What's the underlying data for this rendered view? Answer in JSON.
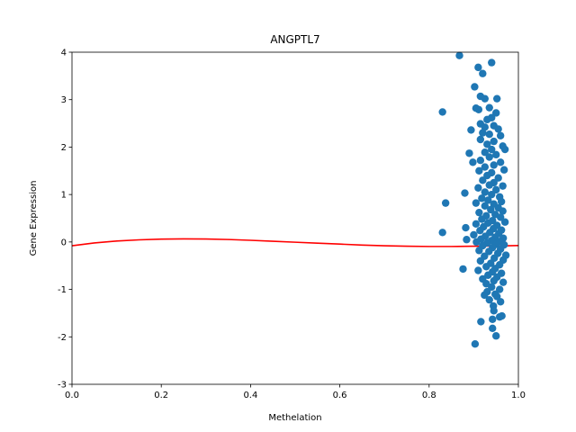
{
  "chart_data": {
    "type": "scatter",
    "title": "ANGPTL7",
    "xlabel": "Methelation",
    "ylabel": "Gene Expression",
    "xlim": [
      0.0,
      1.0
    ],
    "ylim": [
      -3,
      4
    ],
    "x_ticks": [
      "0.0",
      "0.2",
      "0.4",
      "0.6",
      "0.8",
      "1.0"
    ],
    "y_ticks": [
      "-3",
      "-2",
      "-1",
      "0",
      "1",
      "2",
      "3",
      "4"
    ],
    "grid": false,
    "colors": {
      "points": "#1f77b4",
      "fit_line": "#ff0000"
    },
    "series": [
      {
        "kind": "scatter",
        "points": [
          [
            0.868,
            3.93
          ],
          [
            0.94,
            3.78
          ],
          [
            0.91,
            3.68
          ],
          [
            0.92,
            3.55
          ],
          [
            0.902,
            3.27
          ],
          [
            0.915,
            3.07
          ],
          [
            0.925,
            3.02
          ],
          [
            0.952,
            3.02
          ],
          [
            0.905,
            2.82
          ],
          [
            0.911,
            2.79
          ],
          [
            0.935,
            2.83
          ],
          [
            0.95,
            2.72
          ],
          [
            0.83,
            2.74
          ],
          [
            0.94,
            2.62
          ],
          [
            0.93,
            2.58
          ],
          [
            0.915,
            2.49
          ],
          [
            0.945,
            2.45
          ],
          [
            0.925,
            2.42
          ],
          [
            0.894,
            2.36
          ],
          [
            0.955,
            2.38
          ],
          [
            0.92,
            2.3
          ],
          [
            0.935,
            2.27
          ],
          [
            0.96,
            2.24
          ],
          [
            0.915,
            2.16
          ],
          [
            0.945,
            2.12
          ],
          [
            0.93,
            2.06
          ],
          [
            0.965,
            2.02
          ],
          [
            0.97,
            1.95
          ],
          [
            0.94,
            1.95
          ],
          [
            0.925,
            1.89
          ],
          [
            0.89,
            1.87
          ],
          [
            0.95,
            1.84
          ],
          [
            0.935,
            1.79
          ],
          [
            0.915,
            1.72
          ],
          [
            0.96,
            1.68
          ],
          [
            0.898,
            1.68
          ],
          [
            0.945,
            1.62
          ],
          [
            0.925,
            1.58
          ],
          [
            0.968,
            1.52
          ],
          [
            0.912,
            1.5
          ],
          [
            0.94,
            1.46
          ],
          [
            0.93,
            1.4
          ],
          [
            0.955,
            1.35
          ],
          [
            0.92,
            1.3
          ],
          [
            0.945,
            1.25
          ],
          [
            0.935,
            1.2
          ],
          [
            0.965,
            1.18
          ],
          [
            0.91,
            1.14
          ],
          [
            0.95,
            1.1
          ],
          [
            0.925,
            1.05
          ],
          [
            0.88,
            1.03
          ],
          [
            0.94,
            1.0
          ],
          [
            0.958,
            0.95
          ],
          [
            0.918,
            0.92
          ],
          [
            0.932,
            0.88
          ],
          [
            0.962,
            0.85
          ],
          [
            0.945,
            0.8
          ],
          [
            0.905,
            0.82
          ],
          [
            0.837,
            0.82
          ],
          [
            0.925,
            0.76
          ],
          [
            0.955,
            0.72
          ],
          [
            0.938,
            0.68
          ],
          [
            0.965,
            0.65
          ],
          [
            0.912,
            0.62
          ],
          [
            0.948,
            0.58
          ],
          [
            0.928,
            0.55
          ],
          [
            0.96,
            0.52
          ],
          [
            0.918,
            0.48
          ],
          [
            0.942,
            0.45
          ],
          [
            0.97,
            0.42
          ],
          [
            0.932,
            0.4
          ],
          [
            0.905,
            0.38
          ],
          [
            0.952,
            0.35
          ],
          [
            0.922,
            0.32
          ],
          [
            0.882,
            0.3
          ],
          [
            0.944,
            0.28
          ],
          [
            0.962,
            0.25
          ],
          [
            0.914,
            0.24
          ],
          [
            0.936,
            0.2
          ],
          [
            0.83,
            0.2
          ],
          [
            0.956,
            0.18
          ],
          [
            0.9,
            0.15
          ],
          [
            0.926,
            0.12
          ],
          [
            0.948,
            0.1
          ],
          [
            0.966,
            0.08
          ],
          [
            0.916,
            0.06
          ],
          [
            0.884,
            0.05
          ],
          [
            0.94,
            0.03
          ],
          [
            0.958,
            0.01
          ],
          [
            0.906,
            0.0
          ],
          [
            0.93,
            -0.02
          ],
          [
            0.95,
            -0.05
          ],
          [
            0.968,
            -0.06
          ],
          [
            0.92,
            -0.08
          ],
          [
            0.942,
            -0.12
          ],
          [
            0.96,
            -0.15
          ],
          [
            0.912,
            -0.18
          ],
          [
            0.934,
            -0.2
          ],
          [
            0.954,
            -0.24
          ],
          [
            0.972,
            -0.28
          ],
          [
            0.924,
            -0.3
          ],
          [
            0.946,
            -0.34
          ],
          [
            0.966,
            -0.38
          ],
          [
            0.915,
            -0.4
          ],
          [
            0.938,
            -0.45
          ],
          [
            0.958,
            -0.48
          ],
          [
            0.928,
            -0.52
          ],
          [
            0.948,
            -0.56
          ],
          [
            0.876,
            -0.57
          ],
          [
            0.91,
            -0.6
          ],
          [
            0.942,
            -0.63
          ],
          [
            0.962,
            -0.66
          ],
          [
            0.932,
            -0.7
          ],
          [
            0.952,
            -0.74
          ],
          [
            0.92,
            -0.78
          ],
          [
            0.945,
            -0.82
          ],
          [
            0.966,
            -0.85
          ],
          [
            0.928,
            -0.88
          ],
          [
            0.94,
            -0.95
          ],
          [
            0.958,
            -1.0
          ],
          [
            0.93,
            -1.05
          ],
          [
            0.948,
            -1.1
          ],
          [
            0.924,
            -1.12
          ],
          [
            0.952,
            -1.15
          ],
          [
            0.935,
            -1.22
          ],
          [
            0.96,
            -1.26
          ],
          [
            0.944,
            -1.35
          ],
          [
            0.945,
            -1.45
          ],
          [
            0.958,
            -1.58
          ],
          [
            0.963,
            -1.56
          ],
          [
            0.942,
            -1.63
          ],
          [
            0.916,
            -1.68
          ],
          [
            0.942,
            -1.82
          ],
          [
            0.95,
            -1.98
          ],
          [
            0.903,
            -2.15
          ]
        ]
      },
      {
        "kind": "line",
        "points": [
          [
            0.0,
            -0.08
          ],
          [
            0.05,
            -0.02
          ],
          [
            0.1,
            0.02
          ],
          [
            0.15,
            0.045
          ],
          [
            0.2,
            0.06
          ],
          [
            0.25,
            0.065
          ],
          [
            0.3,
            0.063
          ],
          [
            0.35,
            0.052
          ],
          [
            0.4,
            0.035
          ],
          [
            0.45,
            0.015
          ],
          [
            0.5,
            -0.005
          ],
          [
            0.55,
            -0.025
          ],
          [
            0.6,
            -0.045
          ],
          [
            0.65,
            -0.065
          ],
          [
            0.7,
            -0.08
          ],
          [
            0.75,
            -0.09
          ],
          [
            0.8,
            -0.095
          ],
          [
            0.85,
            -0.095
          ],
          [
            0.9,
            -0.09
          ],
          [
            0.95,
            -0.085
          ],
          [
            1.0,
            -0.075
          ]
        ]
      }
    ]
  }
}
